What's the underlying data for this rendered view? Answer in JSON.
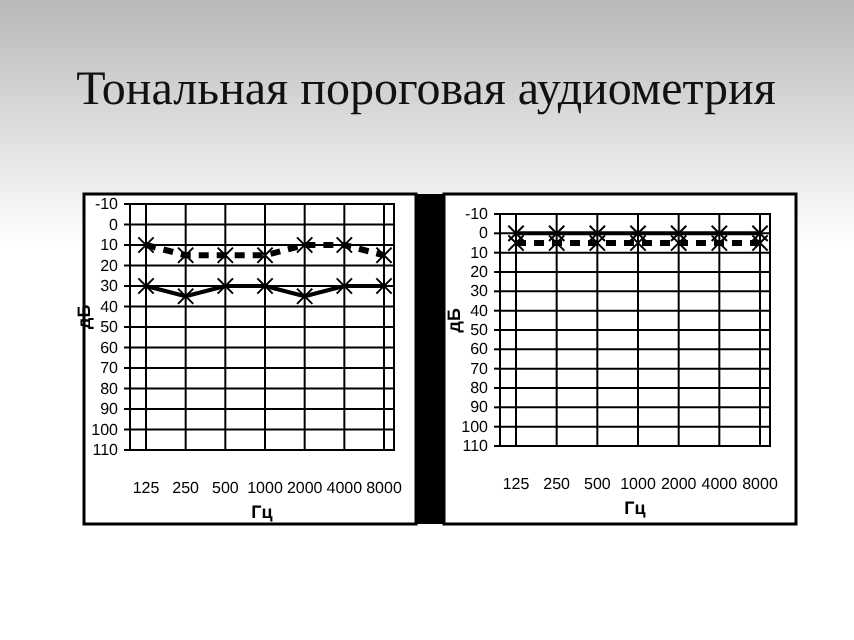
{
  "chart_data": [
    {
      "type": "line",
      "title": "Тональная пороговая аудиометрия",
      "xlabel": "Гц",
      "ylabel": "дБ",
      "categories": [
        "125",
        "250",
        "500",
        "1000",
        "2000",
        "4000",
        "8000"
      ],
      "ylim": [
        110,
        -10
      ],
      "yticks": [
        -10,
        0,
        10,
        20,
        30,
        40,
        50,
        60,
        70,
        80,
        90,
        100,
        110
      ],
      "grid": true,
      "marker": "cross",
      "series": [
        {
          "color": "#000000",
          "line_style": "dashed",
          "values": [
            10,
            15,
            15,
            15,
            10,
            10,
            15
          ]
        },
        {
          "color": "#000000",
          "line_style": "solid",
          "values": [
            30,
            35,
            30,
            30,
            35,
            30,
            30
          ]
        }
      ]
    },
    {
      "type": "line",
      "xlabel": "Гц",
      "ylabel": "дБ",
      "categories": [
        "125",
        "250",
        "500",
        "1000",
        "2000",
        "4000",
        "8000"
      ],
      "ylim": [
        110,
        -10
      ],
      "yticks": [
        -10,
        0,
        10,
        20,
        30,
        40,
        50,
        60,
        70,
        80,
        90,
        100,
        110
      ],
      "grid": true,
      "marker": "cross",
      "series": [
        {
          "color": "#000000",
          "line_style": "dashed",
          "values": [
            5,
            5,
            5,
            5,
            5,
            5,
            5
          ]
        },
        {
          "color": "#000000",
          "line_style": "solid",
          "values": [
            0,
            0,
            0,
            0,
            0,
            0,
            0
          ]
        }
      ]
    }
  ]
}
